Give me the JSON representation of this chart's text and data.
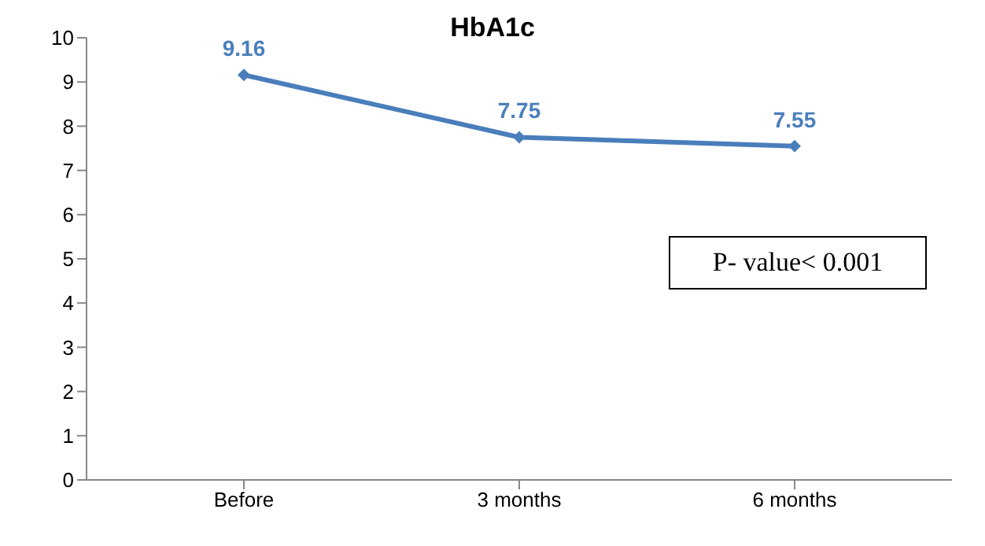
{
  "chart_data": {
    "type": "line",
    "title": "HbA1c",
    "categories": [
      "Before",
      "3 months",
      "6 months"
    ],
    "series": [
      {
        "color": "#4a7ebb",
        "values": [
          9.16,
          7.75,
          7.55
        ]
      }
    ],
    "ylim": [
      0,
      10
    ],
    "yticks": [
      0,
      1,
      2,
      3,
      4,
      5,
      6,
      7,
      8,
      9,
      10
    ],
    "marker": "diamond",
    "line_style": "solid",
    "data_labels": true,
    "annotations": [
      "P- value< 0.001"
    ]
  }
}
